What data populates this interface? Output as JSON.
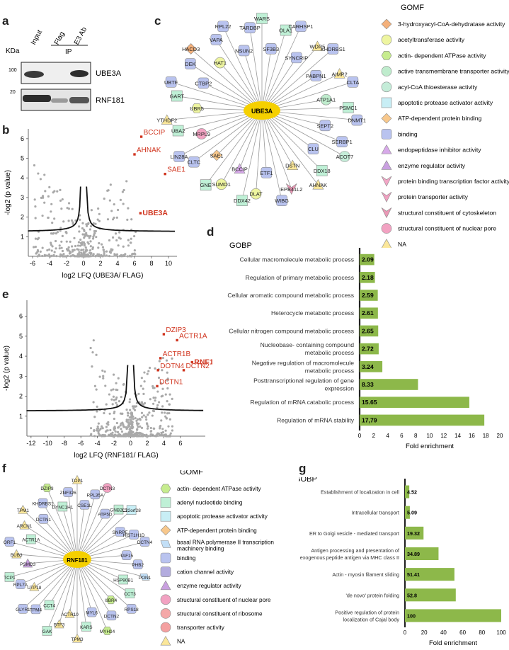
{
  "panel_letters": {
    "a": "a",
    "b": "b",
    "c": "c",
    "d": "d",
    "e": "e",
    "f": "f",
    "g": "g"
  },
  "blot": {
    "kda_label": "KDa",
    "lane_labels": [
      "Input",
      "Flag",
      "E3 Ab"
    ],
    "ip_label": "IP",
    "marker_top": "100",
    "marker_bottom": "20",
    "band_labels": [
      "UBE3A",
      "RNF181"
    ]
  },
  "colors": {
    "red": "#d0341e",
    "gray_point": "#a9a9a9",
    "bar_green": "#8db84a",
    "hub_yellow": "#f5d000",
    "edge_gray": "#9a9a9a"
  },
  "chart_data": [
    {
      "id": "b",
      "type": "scatter",
      "xlabel": "log2 LFQ (UBE3A/ FLAG)",
      "ylabel": "-log2 (p value)",
      "xlim": [
        -6.5,
        11
      ],
      "ylim": [
        0,
        6.5
      ],
      "xticks": [
        -6,
        -4,
        -2,
        0,
        2,
        4,
        6,
        8,
        10
      ],
      "yticks": [
        1,
        2,
        3,
        4,
        5,
        6
      ],
      "highlight_points": [
        {
          "label": "BCCIP",
          "x": 6.8,
          "y": 6.1,
          "bold": false
        },
        {
          "label": "AHNAK",
          "x": 6.0,
          "y": 5.2,
          "bold": false
        },
        {
          "label": "SAE1",
          "x": 9.6,
          "y": 4.2,
          "bold": false
        },
        {
          "label": "UBE3A",
          "x": 6.7,
          "y": 2.2,
          "bold": true
        }
      ]
    },
    {
      "id": "e",
      "type": "scatter",
      "xlabel": "log2 LFQ (RNF181/ FLAG)",
      "ylabel": "-log2 (p value)",
      "xlim": [
        -12.5,
        9
      ],
      "ylim": [
        0,
        6.8
      ],
      "xticks": [
        -12,
        -10,
        -8,
        -6,
        -4,
        -2,
        0,
        2,
        4,
        6
      ],
      "yticks": [
        1,
        2,
        3,
        4,
        5,
        6
      ],
      "highlight_points": [
        {
          "label": "DZIP3",
          "x": 4.0,
          "y": 5.1,
          "bold": false
        },
        {
          "label": "ACTR1A",
          "x": 5.6,
          "y": 4.8,
          "bold": false
        },
        {
          "label": "ACTR1B",
          "x": 3.6,
          "y": 3.9,
          "bold": false
        },
        {
          "label": "RNF181",
          "x": 7.4,
          "y": 3.7,
          "bold": true
        },
        {
          "label": "DOTN4",
          "x": 3.3,
          "y": 3.3,
          "bold": false
        },
        {
          "label": "DCTN2",
          "x": 6.4,
          "y": 3.3,
          "bold": false
        },
        {
          "label": "DCTN1",
          "x": 3.2,
          "y": 2.5,
          "bold": false
        }
      ]
    },
    {
      "id": "d",
      "type": "bar",
      "orientation": "horizontal",
      "title": "GOBP",
      "xlabel": "Fold enrichment",
      "xlim": [
        0,
        20
      ],
      "xticks": [
        0,
        2,
        4,
        6,
        8,
        10,
        12,
        14,
        16,
        18,
        20
      ],
      "categories": [
        [
          "Cellular macromolecule metabolic process"
        ],
        [
          "Regulation of primary metabolic process"
        ],
        [
          "Cellular aromatic compound metabolic process"
        ],
        [
          "Heterocycle metabolic process"
        ],
        [
          "Cellular nitrogen compound metabolic process"
        ],
        [
          "Nucleobase- containing compound",
          "metabolic process"
        ],
        [
          "Negative regulation of macromolecule",
          "metabolic process"
        ],
        [
          "Posttranscriptional regulation of gene",
          "expression"
        ],
        [
          "Regulation of mRNA catabolic process"
        ],
        [
          "Regulation of mRNA stability"
        ]
      ],
      "values": [
        2.09,
        2.18,
        2.59,
        2.61,
        2.65,
        2.72,
        3.24,
        8.33,
        15.65,
        17.79
      ],
      "value_labels": [
        "2.09",
        "2.18",
        "2.59",
        "2.61",
        "2.65",
        "2.72",
        "3.24",
        "8.33",
        "15.65",
        "17,79"
      ]
    },
    {
      "id": "g",
      "type": "bar",
      "orientation": "horizontal",
      "title": "GOBP",
      "xlabel": "Fold enrichment",
      "xlim": [
        0,
        100
      ],
      "xticks": [
        0,
        20,
        40,
        60,
        80,
        100
      ],
      "categories": [
        [
          "Establishment of localization in cell"
        ],
        [
          "Intracellular transport"
        ],
        [
          "ER to Golgi vesicle - mediated transport"
        ],
        [
          "Antigen processing and presentation of",
          "exogenous peptide antigen via MHC class II"
        ],
        [
          "Actin - myosin filament sliding"
        ],
        [
          "'de novo' protein folding"
        ],
        [
          "Positive regulation of protein",
          "localization of Cajal body"
        ]
      ],
      "values": [
        4.52,
        5.09,
        19.32,
        34.89,
        51.41,
        52.8,
        100
      ],
      "value_labels": [
        "4.52",
        "5.09",
        "19.32",
        "34.89",
        "51.41",
        "52.8",
        "100"
      ]
    }
  ],
  "legend_c": {
    "title": "GOMF",
    "items": [
      {
        "label": "3-hydroxyacyl-CoA-dehydratase activity",
        "shape": "diamond",
        "color": "#f4b07a"
      },
      {
        "label": "acetyltransferase activity",
        "shape": "circle",
        "color": "#eef5a0"
      },
      {
        "label": "actin- dependent ATPase activity",
        "shape": "hexagon",
        "color": "#c6ec8e"
      },
      {
        "label": "active transmembrane transporter activity",
        "shape": "circle",
        "color": "#bfeccd"
      },
      {
        "label": "acyl-CoA thioesterase activity",
        "shape": "circle",
        "color": "#c4ecd8"
      },
      {
        "label": "apoptotic protease activator activity",
        "shape": "square",
        "color": "#c8eef5"
      },
      {
        "label": "ATP-dependent protein binding",
        "shape": "diamond",
        "color": "#f8c88c"
      },
      {
        "label": "binding",
        "shape": "roundsquare",
        "color": "#b9c3ef"
      },
      {
        "label": "endopeptidase inhibitor activity",
        "shape": "triangle",
        "color": "#d7a9e9"
      },
      {
        "label": "enzyme regulator activity",
        "shape": "triangle",
        "color": "#c9a0e0"
      },
      {
        "label": "protein binding transcription factor activity",
        "shape": "vee",
        "color": "#f3a6c6"
      },
      {
        "label": "protein transporter activity",
        "shape": "vee",
        "color": "#f0a0c0"
      },
      {
        "label": "structural constituent of cytoskeleton",
        "shape": "vee",
        "color": "#eb98b6"
      },
      {
        "label": "structural constituent of nuclear pore",
        "shape": "circle",
        "color": "#f2a2c2"
      },
      {
        "label": "NA",
        "shape": "triangle",
        "color": "#fbe79a"
      }
    ]
  },
  "legend_f": {
    "title": "GOMF",
    "items": [
      {
        "label": "actin- dependent ATPase activity",
        "shape": "hexagon",
        "color": "#c6ec8e"
      },
      {
        "label": "adenyl nucleotide binding",
        "shape": "square",
        "color": "#bff0d6"
      },
      {
        "label": "apoptotic protease activator activity",
        "shape": "square",
        "color": "#c8eef5"
      },
      {
        "label": "ATP-dependent protein binding",
        "shape": "diamond",
        "color": "#f8c88c"
      },
      {
        "label": "basal RNA polymerase II transcription machinery binding",
        "shape": "parallelogram",
        "color": "#c2dff7"
      },
      {
        "label": "binding",
        "shape": "roundsquare",
        "color": "#b9c3ef"
      },
      {
        "label": "cation channel activity",
        "shape": "roundsquare",
        "color": "#b3acdf"
      },
      {
        "label": "enzyme regulator activity",
        "shape": "triangle",
        "color": "#c9a0e0"
      },
      {
        "label": "structural constituent of nuclear pore",
        "shape": "circle",
        "color": "#f2a2c2"
      },
      {
        "label": "structural constituent of ribosome",
        "shape": "circle",
        "color": "#f4a8a8"
      },
      {
        "label": "transporter activity",
        "shape": "circle",
        "color": "#f4a0a0"
      },
      {
        "label": "NA",
        "shape": "triangle",
        "color": "#fbe79a"
      }
    ]
  },
  "network_c": {
    "hub": "UBE3A",
    "nodes": [
      {
        "label": "WARS",
        "shape": "square",
        "color": "#bff0d6"
      },
      {
        "label": "SF3B3",
        "shape": "roundsquare",
        "color": "#b9c3ef"
      },
      {
        "label": "OLA1",
        "shape": "square",
        "color": "#bff0d6"
      },
      {
        "label": "CARHSP1",
        "shape": "roundsquare",
        "color": "#b9c3ef"
      },
      {
        "label": "SYNCRIP",
        "shape": "roundsquare",
        "color": "#b9c3ef"
      },
      {
        "label": "WDR5",
        "shape": "triangle",
        "color": "#fbe79a"
      },
      {
        "label": "KHDRBS1",
        "shape": "roundsquare",
        "color": "#b9c3ef"
      },
      {
        "label": "PABPN1",
        "shape": "roundsquare",
        "color": "#b9c3ef"
      },
      {
        "label": "AIMP2",
        "shape": "triangle",
        "color": "#fbe79a"
      },
      {
        "label": "CLTA",
        "shape": "roundsquare",
        "color": "#b9c3ef"
      },
      {
        "label": "ATP1A1",
        "shape": "circle",
        "color": "#bfeccd"
      },
      {
        "label": "PSMC1",
        "shape": "square",
        "color": "#bff0d6"
      },
      {
        "label": "DNMT1",
        "shape": "roundsquare",
        "color": "#b9c3ef"
      },
      {
        "label": "SEPT2",
        "shape": "roundsquare",
        "color": "#b9c3ef"
      },
      {
        "label": "SERBP1",
        "shape": "roundsquare",
        "color": "#b9c3ef"
      },
      {
        "label": "ACOT7",
        "shape": "circle",
        "color": "#c4ecd8"
      },
      {
        "label": "CLU",
        "shape": "roundsquare",
        "color": "#b9c3ef"
      },
      {
        "label": "DDX18",
        "shape": "square",
        "color": "#bff0d6"
      },
      {
        "label": "AHNAK",
        "shape": "triangle",
        "color": "#fbe79a"
      },
      {
        "label": "DSTN",
        "shape": "triangle",
        "color": "#fbe79a"
      },
      {
        "label": "EPB41L2",
        "shape": "vee",
        "color": "#eb98b6"
      },
      {
        "label": "WIBG",
        "shape": "roundsquare",
        "color": "#b9c3ef"
      },
      {
        "label": "ETF1",
        "shape": "roundsquare",
        "color": "#b9c3ef"
      },
      {
        "label": "DLAT",
        "shape": "circle",
        "color": "#eef5a0"
      },
      {
        "label": "DDX42",
        "shape": "square",
        "color": "#bff0d6"
      },
      {
        "label": "BCCIP",
        "shape": "triangle",
        "color": "#d7a9e9"
      },
      {
        "label": "SUMO1",
        "shape": "circle",
        "color": "#eef5a0"
      },
      {
        "label": "GNE",
        "shape": "square",
        "color": "#bff0d6"
      },
      {
        "label": "SAE1",
        "shape": "diamond",
        "color": "#f8c88c"
      },
      {
        "label": "CLTC",
        "shape": "roundsquare",
        "color": "#b9c3ef"
      },
      {
        "label": "LIN28A",
        "shape": "roundsquare",
        "color": "#b9c3ef"
      },
      {
        "label": "MRPL9",
        "shape": "circle",
        "color": "#f2a2c2"
      },
      {
        "label": "UBA2",
        "shape": "square",
        "color": "#bff0d6"
      },
      {
        "label": "YTHDF2",
        "shape": "triangle",
        "color": "#fbe79a"
      },
      {
        "label": "UBR5",
        "shape": "hexagon",
        "color": "#eef5a0"
      },
      {
        "label": "GART",
        "shape": "square",
        "color": "#bff0d6"
      },
      {
        "label": "UBTF",
        "shape": "roundsquare",
        "color": "#b9c3ef"
      },
      {
        "label": "CTBP2",
        "shape": "roundsquare",
        "color": "#b9c3ef"
      },
      {
        "label": "DEK",
        "shape": "roundsquare",
        "color": "#b9c3ef"
      },
      {
        "label": "HACD3",
        "shape": "diamond",
        "color": "#f4b07a"
      },
      {
        "label": "HAT1",
        "shape": "circle",
        "color": "#eef5a0"
      },
      {
        "label": "VAPA",
        "shape": "roundsquare",
        "color": "#b9c3ef"
      },
      {
        "label": "RPL22",
        "shape": "roundsquare",
        "color": "#b9c3ef"
      },
      {
        "label": "NSUN2",
        "shape": "roundsquare",
        "color": "#b9c3ef"
      },
      {
        "label": "TARDBP",
        "shape": "roundsquare",
        "color": "#b9c3ef"
      }
    ]
  },
  "network_f": {
    "hub": "RNF181",
    "nodes": [
      {
        "label": "TOP1",
        "shape": "triangle",
        "color": "#fbe79a"
      },
      {
        "label": "CSE1L",
        "shape": "roundsquare",
        "color": "#b9c3ef"
      },
      {
        "label": "RPL35A",
        "shape": "roundsquare",
        "color": "#b9c3ef"
      },
      {
        "label": "DCTN3",
        "shape": "circle",
        "color": "#f2a2c2"
      },
      {
        "label": "ATP5D",
        "shape": "roundsquare",
        "color": "#b9c3ef"
      },
      {
        "label": "GNB2L1",
        "shape": "square",
        "color": "#bff0d6"
      },
      {
        "label": "C22orf28",
        "shape": "square",
        "color": "#c8eef5"
      },
      {
        "label": "SNRPE",
        "shape": "roundsquare",
        "color": "#b9c3ef"
      },
      {
        "label": "HIST1H1D",
        "shape": "roundsquare",
        "color": "#b9c3ef"
      },
      {
        "label": "DCTN4",
        "shape": "roundsquare",
        "color": "#b9c3ef"
      },
      {
        "label": "TAF15",
        "shape": "roundsquare",
        "color": "#b9c3ef"
      },
      {
        "label": "PHB2",
        "shape": "roundsquare",
        "color": "#b9c3ef"
      },
      {
        "label": "PON1",
        "shape": "parallelogram",
        "color": "#c2dff7"
      },
      {
        "label": "HSP90B1",
        "shape": "square",
        "color": "#bff0d6"
      },
      {
        "label": "CCT3",
        "shape": "square",
        "color": "#bff0d6"
      },
      {
        "label": "RPS18",
        "shape": "roundsquare",
        "color": "#b9c3ef"
      },
      {
        "label": "UBR4",
        "shape": "hexagon",
        "color": "#c6ec8e"
      },
      {
        "label": "DCTN2",
        "shape": "roundsquare",
        "color": "#b9c3ef"
      },
      {
        "label": "MYH14",
        "shape": "hexagon",
        "color": "#c6ec8e"
      },
      {
        "label": "MYL6",
        "shape": "roundsquare",
        "color": "#b9c3ef"
      },
      {
        "label": "KARS",
        "shape": "square",
        "color": "#bff0d6"
      },
      {
        "label": "TPM3",
        "shape": "triangle",
        "color": "#fbe79a"
      },
      {
        "label": "ACTR10",
        "shape": "triangle",
        "color": "#fbe79a"
      },
      {
        "label": "BTF3",
        "shape": "triangle",
        "color": "#fbe79a"
      },
      {
        "label": "GAK",
        "shape": "square",
        "color": "#bff0d6"
      },
      {
        "label": "CCT4",
        "shape": "square",
        "color": "#bff0d6"
      },
      {
        "label": "TPM4",
        "shape": "roundsquare",
        "color": "#b9c3ef"
      },
      {
        "label": "GLYR1",
        "shape": "roundsquare",
        "color": "#b9c3ef"
      },
      {
        "label": "UTP18",
        "shape": "triangle",
        "color": "#fbe79a"
      },
      {
        "label": "RPL7A",
        "shape": "roundsquare",
        "color": "#b9c3ef"
      },
      {
        "label": "TCP1",
        "shape": "square",
        "color": "#bff0d6"
      },
      {
        "label": "PSMD3",
        "shape": "triangle",
        "color": "#c9a0e0"
      },
      {
        "label": "BUB3",
        "shape": "triangle",
        "color": "#fbe79a"
      },
      {
        "label": "ORF1",
        "shape": "roundsquare",
        "color": "#b9c3ef"
      },
      {
        "label": "ACTR1A",
        "shape": "square",
        "color": "#bff0d6"
      },
      {
        "label": "ARCN1",
        "shape": "triangle",
        "color": "#fbe79a"
      },
      {
        "label": "TPM1",
        "shape": "triangle",
        "color": "#fbe79a"
      },
      {
        "label": "DCTN1",
        "shape": "roundsquare",
        "color": "#b9c3ef"
      },
      {
        "label": "KHDRBS1",
        "shape": "roundsquare",
        "color": "#b9c3ef"
      },
      {
        "label": "DZIP3",
        "shape": "hexagon",
        "color": "#c6ec8e"
      },
      {
        "label": "DYNC1H1",
        "shape": "square",
        "color": "#bff0d6"
      },
      {
        "label": "ZNF326",
        "shape": "roundsquare",
        "color": "#b9c3ef"
      }
    ]
  }
}
